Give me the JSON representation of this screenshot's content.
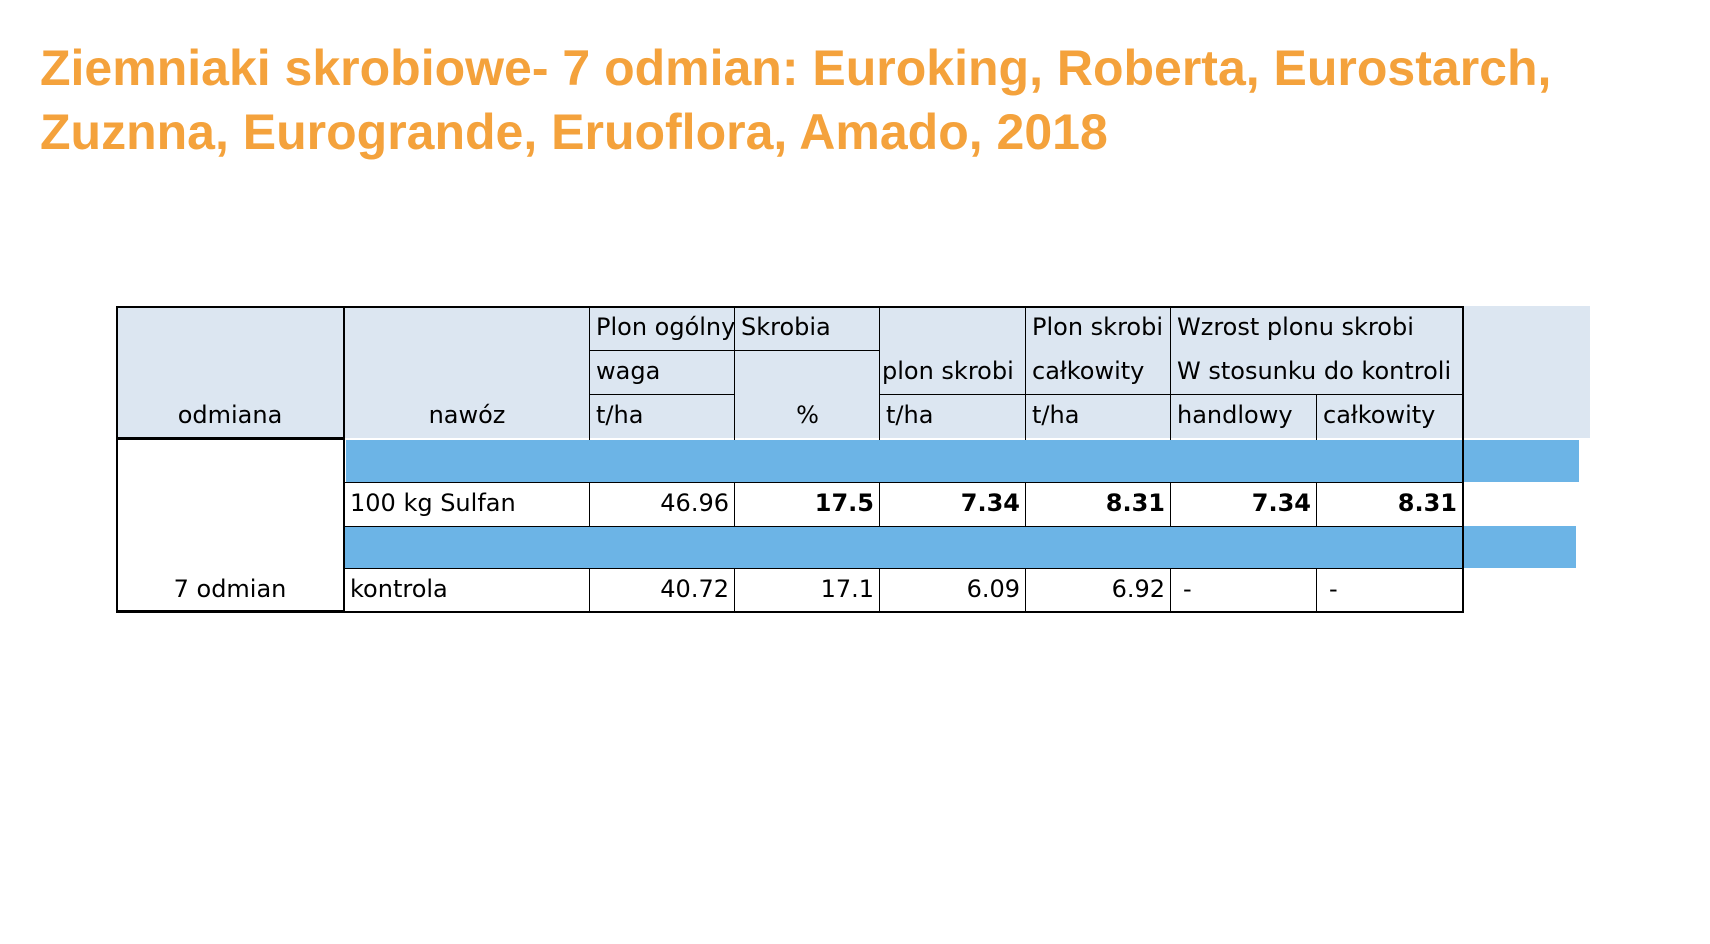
{
  "title": {
    "line1": "Ziemniaki skrobiowe- 7 odmian: Euroking, Roberta, Eurostarch,",
    "line2": "Zuznna, Eurogrande, Eruoflora, Amado, 2018"
  },
  "table": {
    "headers": {
      "odmiana": "odmiana",
      "nawoz": "nawóz",
      "plon_ogolny": "Plon ogólny",
      "waga": "waga",
      "plon_unit": "t/ha",
      "skrobia": "Skrobia",
      "skrobia_unit": "%",
      "plon_skrobi": "plon skrobi",
      "plon_skrobi_unit": "t/ha",
      "plon_skrobi_calk": "Plon skrobi",
      "calkowity": "całkowity",
      "calk_unit": "t/ha",
      "wzrost": "Wzrost plonu skrobi",
      "stosunek": "W stosunku do kontroli",
      "handlowy": "handlowy",
      "wzrost_calkowity": "całkowity"
    },
    "group_label": "7 odmian",
    "rows": [
      {
        "nawoz": "100 kg Sulfan",
        "plon": "46.96",
        "skrobia": "17.5",
        "plon_skrobi": "7.34",
        "plon_calk": "8.31",
        "wzrost_handlowy": "7.34",
        "wzrost_calkowity": "8.31"
      },
      {
        "nawoz": "kontrola",
        "plon": "40.72",
        "skrobia": "17.1",
        "plon_skrobi": "6.09",
        "plon_calk": "6.92",
        "wzrost_handlowy": "-",
        "wzrost_calkowity": "-"
      }
    ]
  }
}
